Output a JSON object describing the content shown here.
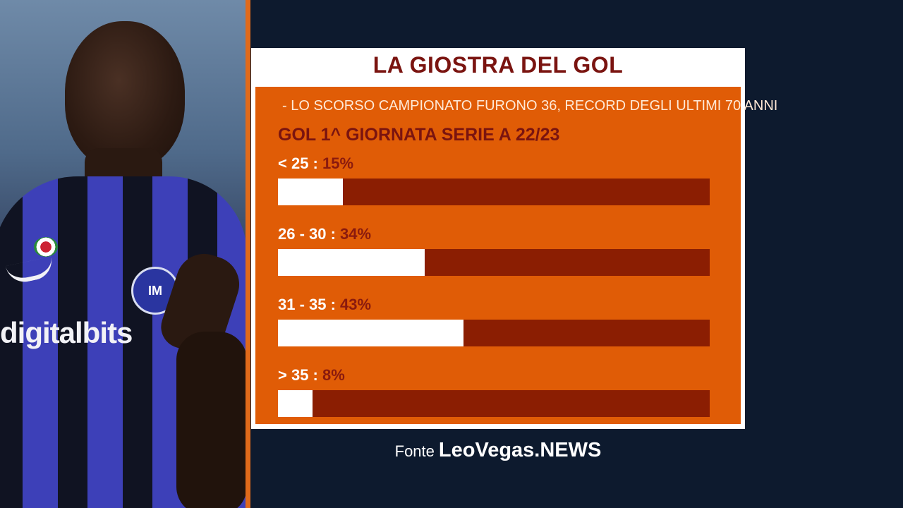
{
  "photo": {
    "sponsor_text": "digitalbits",
    "badge_text": "IM"
  },
  "card": {
    "title": "LA GIOSTRA DEL GOL",
    "note": "- LO SCORSO CAMPIONATO FURONO 36, RECORD DEGLI ULTIMI 70 ANNI",
    "subtitle": "GOL 1^ GIORNATA SERIE A 22/23"
  },
  "chart_data": {
    "type": "bar",
    "orientation": "horizontal",
    "title": "GOL 1^ GIORNATA SERIE A 22/23",
    "categories": [
      "< 25",
      "26 - 30",
      "31 - 35",
      "> 35"
    ],
    "values": [
      15,
      34,
      43,
      8
    ],
    "value_labels": [
      "15%",
      "34%",
      "43%",
      "8%"
    ],
    "xlim": [
      0,
      100
    ],
    "grid": false,
    "colors": {
      "fill": "#ffffff",
      "track": "#8b1e02",
      "panel": "#e05c06",
      "title": "#7a1410"
    }
  },
  "source": {
    "label": "Fonte",
    "brand": "LeoVegas.NEWS"
  }
}
